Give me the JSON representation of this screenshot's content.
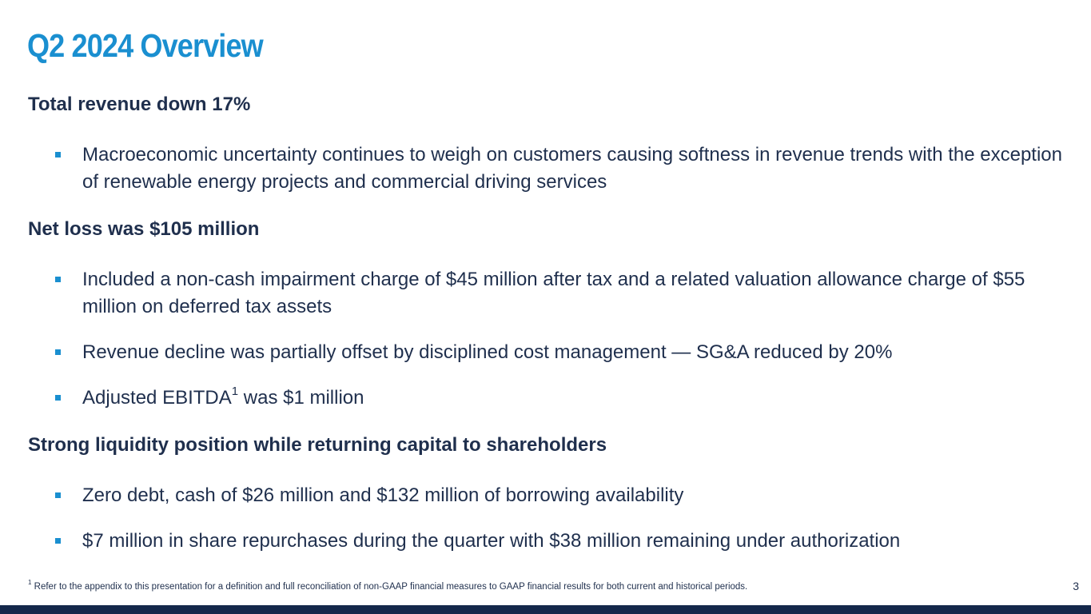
{
  "slide": {
    "title": "Q2 2024 Overview",
    "page_number": "3"
  },
  "sections": [
    {
      "heading": "Total revenue down 17%",
      "bullets": [
        "Macroeconomic uncertainty continues to weigh on customers causing softness in revenue trends with the exception of renewable energy projects and commercial driving services"
      ]
    },
    {
      "heading": "Net loss was $105 million",
      "bullets": [
        "Included a non-cash impairment charge of $45 million after tax and a related valuation allowance charge of $55 million on deferred tax assets",
        "Revenue decline was partially offset by disciplined cost management — SG&A reduced by 20%"
      ],
      "ebitda_bullet": {
        "before": "Adjusted EBITDA",
        "sup": "1",
        "after": " was $1 million"
      }
    },
    {
      "heading": "Strong liquidity position while returning capital to shareholders",
      "bullets": [
        "Zero debt, cash of $26 million and $132 million of borrowing availability",
        "$7 million in share repurchases during the quarter with $38 million remaining under authorization"
      ]
    }
  ],
  "footnote": {
    "marker": "1",
    "text": " Refer to the appendix to this presentation for a definition and full reconciliation of non-GAAP financial measures to GAAP financial results for both current and historical periods."
  },
  "colors": {
    "title": "#1a8fd0",
    "bullet_marker": "#1a8fd0",
    "body_text": "#1f2f4d",
    "bottom_bar": "#14284b"
  }
}
